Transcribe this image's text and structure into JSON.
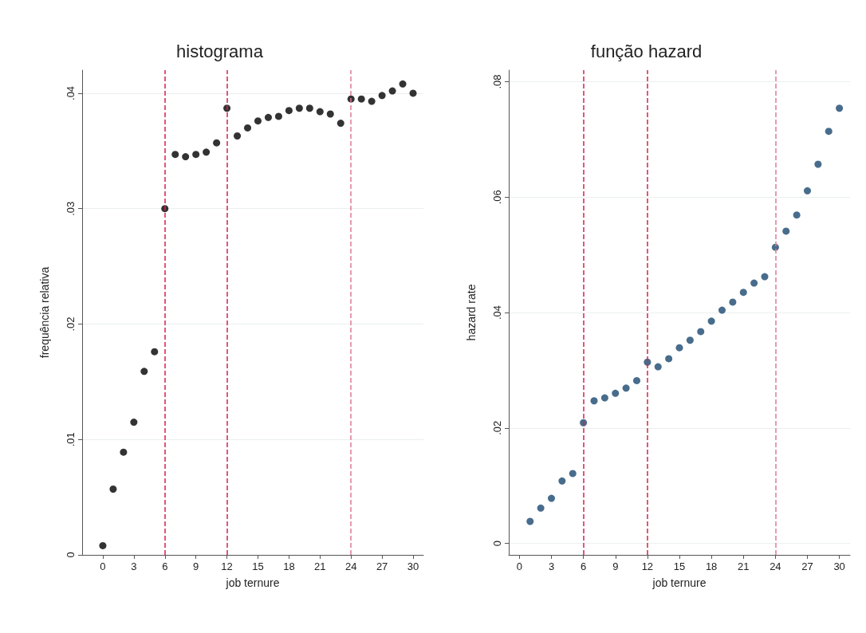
{
  "chart_data": [
    {
      "type": "scatter",
      "title": "histograma",
      "xlabel": "job ternure",
      "ylabel": "frequência relativa",
      "x": [
        0,
        1,
        2,
        3,
        4,
        5,
        6,
        7,
        8,
        9,
        10,
        11,
        12,
        13,
        14,
        15,
        16,
        17,
        18,
        19,
        20,
        21,
        22,
        23,
        24,
        25,
        26,
        27,
        28,
        29,
        30
      ],
      "series": [
        {
          "color": "#000000",
          "values": [
            0.0008,
            0.0057,
            0.0089,
            0.0115,
            0.0159,
            0.0176,
            0.03,
            0.0347,
            0.0345,
            0.0347,
            0.0349,
            0.0357,
            0.0387,
            0.0363,
            0.037,
            0.0376,
            0.0379,
            0.038,
            0.0385,
            0.0387,
            0.0387,
            0.0384,
            0.0382,
            0.0374,
            0.0395,
            0.0395,
            0.0393,
            0.0398,
            0.0402,
            0.0408,
            0.04
          ]
        }
      ],
      "xlim": [
        -2,
        31
      ],
      "xticks": [
        0,
        3,
        6,
        9,
        12,
        15,
        18,
        21,
        24,
        27,
        30
      ],
      "ylim": [
        0,
        0.042
      ],
      "yticks": [
        0,
        {
          "value": 0.01,
          "label": ".01"
        },
        {
          "value": 0.02,
          "label": ".02"
        },
        {
          "value": 0.03,
          "label": ".03"
        },
        {
          "value": 0.04,
          "label": ".04"
        }
      ],
      "grid": "y",
      "marker": "circle",
      "ref_lines": [
        {
          "axis": "x",
          "value": 6,
          "color": "#d6204e",
          "line_style": "dashed"
        },
        {
          "axis": "x",
          "value": 12,
          "color": "#d6204e",
          "line_style": "dashed"
        },
        {
          "axis": "x",
          "value": 24,
          "color": "#e07b95",
          "line_style": "dashed"
        }
      ]
    },
    {
      "type": "scatter",
      "title": "função hazard",
      "xlabel": "job ternure",
      "ylabel": "hazard rate",
      "x": [
        1,
        2,
        3,
        4,
        5,
        6,
        7,
        8,
        9,
        10,
        11,
        12,
        13,
        14,
        15,
        16,
        17,
        18,
        19,
        20,
        21,
        22,
        23,
        24,
        25,
        26,
        27,
        28,
        29,
        30
      ],
      "series": [
        {
          "color": "#1a476f",
          "values": [
            0.0038,
            0.0061,
            0.0078,
            0.0108,
            0.0121,
            0.0209,
            0.0247,
            0.0252,
            0.026,
            0.0269,
            0.0282,
            0.0314,
            0.0306,
            0.032,
            0.0339,
            0.0352,
            0.0367,
            0.0385,
            0.0404,
            0.0418,
            0.0435,
            0.0451,
            0.0462,
            0.0513,
            0.0541,
            0.0569,
            0.0611,
            0.0657,
            0.0714,
            0.0754
          ]
        }
      ],
      "xlim": [
        -1,
        31
      ],
      "xticks": [
        0,
        3,
        6,
        9,
        12,
        15,
        18,
        21,
        24,
        27,
        30
      ],
      "ylim": [
        -0.002,
        0.082
      ],
      "yticks": [
        0,
        {
          "value": 0.02,
          "label": ".02"
        },
        {
          "value": 0.04,
          "label": ".04"
        },
        {
          "value": 0.06,
          "label": ".06"
        },
        {
          "value": 0.08,
          "label": ".08"
        }
      ],
      "grid": "y",
      "marker": "circle",
      "ref_lines": [
        {
          "axis": "x",
          "value": 6,
          "color": "#d6204e",
          "line_style": "dashed"
        },
        {
          "axis": "x",
          "value": 12,
          "color": "#d6204e",
          "line_style": "dashed"
        },
        {
          "axis": "x",
          "value": 24,
          "color": "#e07b95",
          "line_style": "dashed"
        }
      ]
    }
  ]
}
